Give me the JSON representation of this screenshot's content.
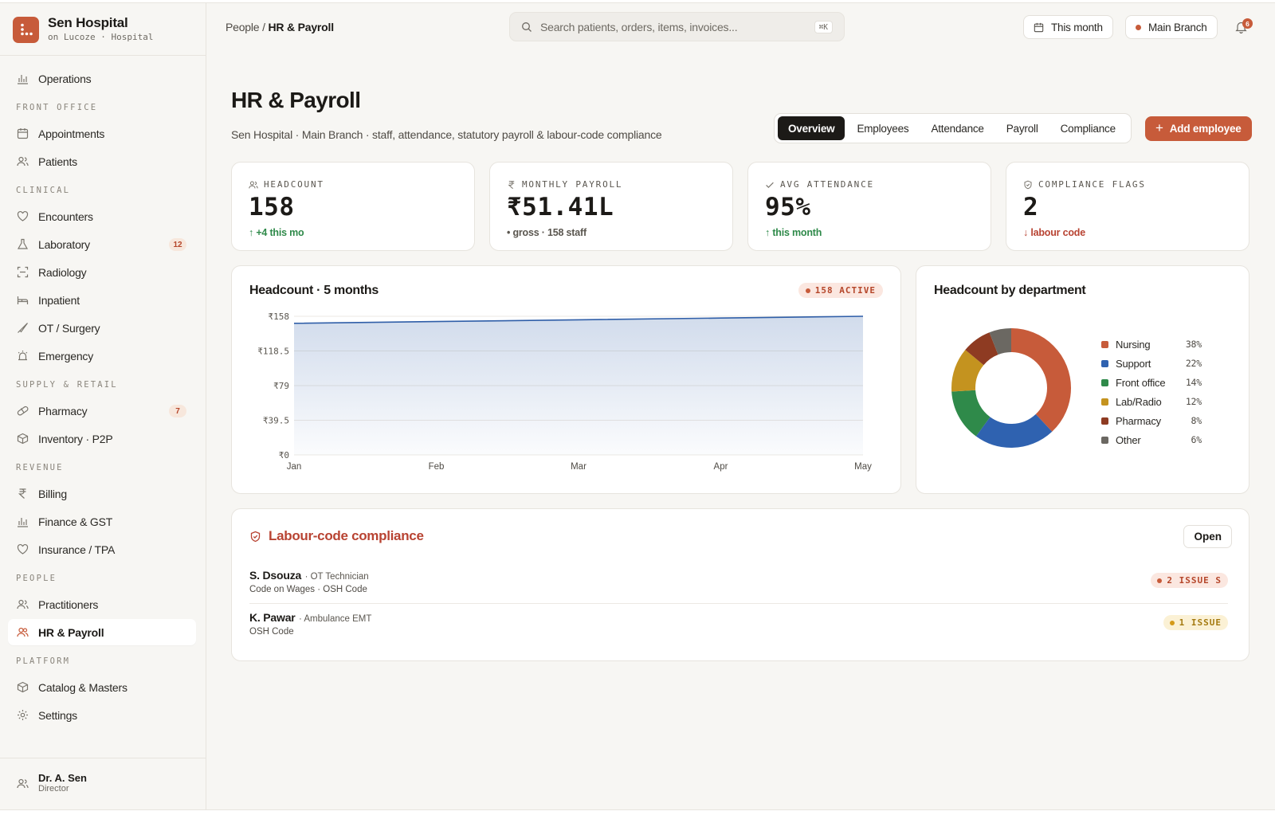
{
  "brand": {
    "name": "Sen Hospital",
    "sub": "on Lucoze · Hospital",
    "color": "#c75b3a"
  },
  "sidebar": {
    "operations": "Operations",
    "sections": {
      "front_office": "FRONT OFFICE",
      "clinical": "CLINICAL",
      "supply": "SUPPLY & RETAIL",
      "revenue": "REVENUE",
      "people": "PEOPLE",
      "platform": "PLATFORM"
    },
    "items": {
      "appointments": "Appointments",
      "patients": "Patients",
      "encounters": "Encounters",
      "laboratory": "Laboratory",
      "laboratory_badge": "12",
      "radiology": "Radiology",
      "inpatient": "Inpatient",
      "ot_surgery": "OT / Surgery",
      "emergency": "Emergency",
      "pharmacy": "Pharmacy",
      "pharmacy_badge": "7",
      "inventory": "Inventory · P2P",
      "billing": "Billing",
      "finance": "Finance & GST",
      "insurance": "Insurance / TPA",
      "practitioners": "Practitioners",
      "hr_payroll": "HR & Payroll",
      "catalog": "Catalog & Masters",
      "settings": "Settings"
    },
    "user": {
      "name": "Dr. A. Sen",
      "role": "Director"
    }
  },
  "topbar": {
    "crumb_parent": "People /",
    "crumb_current": "HR & Payroll",
    "search_placeholder": "Search patients, orders, items, invoices...",
    "search_shortcut": "⌘K",
    "period": "This month",
    "branch": "Main Branch",
    "notifications": "6"
  },
  "page": {
    "title": "HR & Payroll",
    "subtitle": "Sen Hospital · Main Branch · staff, attendance, statutory payroll & labour-code compliance",
    "tabs": [
      "Overview",
      "Employees",
      "Attendance",
      "Payroll",
      "Compliance"
    ],
    "active_tab": "Overview",
    "add_button": "Add employee"
  },
  "kpis": {
    "headcount": {
      "label": "HEADCOUNT",
      "value": "158",
      "foot": "↑ +4 this mo"
    },
    "payroll": {
      "label": "MONTHLY PAYROLL",
      "value": "₹51.41L",
      "foot": "• gross · 158 staff"
    },
    "attendance": {
      "label": "AVG ATTENDANCE",
      "value": "95%",
      "foot": "↑ this month"
    },
    "compliance": {
      "label": "COMPLIANCE FLAGS",
      "value": "2",
      "foot": "↓ labour code"
    }
  },
  "headcount_chart": {
    "title": "Headcount · 5 months",
    "badge": "158 ACTIVE"
  },
  "dept_chart": {
    "title": "Headcount by department"
  },
  "chart_data": [
    {
      "type": "area",
      "title": "Headcount · 5 months",
      "x": [
        "Jan",
        "Feb",
        "Mar",
        "Apr",
        "May"
      ],
      "values": [
        150,
        152,
        154,
        156,
        158
      ],
      "ylim": [
        0,
        158
      ],
      "yticks": [
        "₹158",
        "₹118.5",
        "₹79",
        "₹39.5",
        "₹0"
      ],
      "grid": true,
      "color": "#2f5ea8"
    },
    {
      "type": "pie",
      "title": "Headcount by department",
      "slices": [
        {
          "label": "Nursing",
          "value": 38,
          "pct": "38%",
          "color": "#c75b3a"
        },
        {
          "label": "Support",
          "value": 22,
          "pct": "22%",
          "color": "#2f62b0"
        },
        {
          "label": "Front office",
          "value": 14,
          "pct": "14%",
          "color": "#2f8a4a"
        },
        {
          "label": "Lab/Radio",
          "value": 12,
          "pct": "12%",
          "color": "#c4931f"
        },
        {
          "label": "Pharmacy",
          "value": 8,
          "pct": "8%",
          "color": "#8e3b22"
        },
        {
          "label": "Other",
          "value": 6,
          "pct": "6%",
          "color": "#6b6862"
        }
      ],
      "legend": "right"
    }
  ],
  "compliance": {
    "title": "Labour-code compliance",
    "open_button": "Open",
    "rows": [
      {
        "name": "S. Dsouza",
        "role": "· OT Technician",
        "codes": "Code on Wages · OSH Code",
        "issue": "2 ISSUE S"
      },
      {
        "name": "K. Pawar",
        "role": "· Ambulance EMT",
        "codes": "OSH Code",
        "issue": "1 ISSUE"
      }
    ]
  }
}
